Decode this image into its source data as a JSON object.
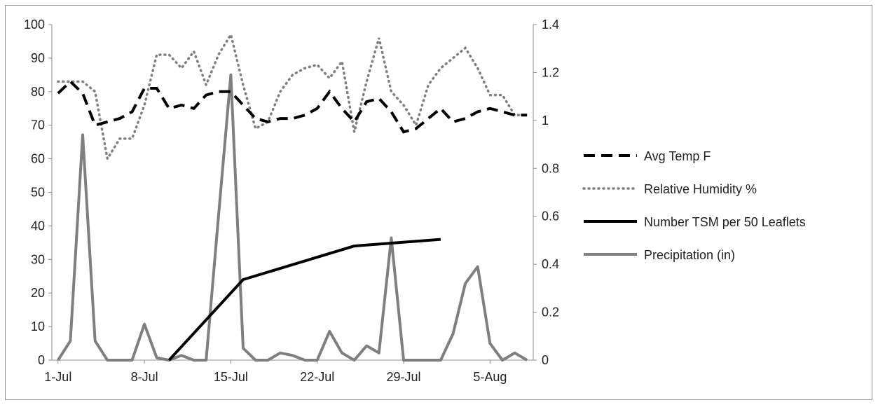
{
  "chart_data": {
    "type": "line",
    "x_axis": {
      "ticks": [
        "1-Jul",
        "8-Jul",
        "15-Jul",
        "22-Jul",
        "29-Jul",
        "5-Aug"
      ],
      "range_days": [
        1,
        39
      ]
    },
    "y_left": {
      "range": [
        0,
        100
      ],
      "ticks": [
        "0",
        "10",
        "20",
        "30",
        "40",
        "50",
        "60",
        "70",
        "80",
        "90",
        "100"
      ]
    },
    "y_right": {
      "range": [
        0,
        1.4
      ],
      "ticks": [
        "0",
        "0.2",
        "0.4",
        "0.6",
        "0.8",
        "1",
        "1.2",
        "1.4"
      ]
    },
    "grid": false,
    "legend_position": "right",
    "series": [
      {
        "name": "Avg Temp F",
        "axis": "left",
        "style": "dashed",
        "color": "#000000",
        "x": [
          1,
          2,
          3,
          4,
          5,
          6,
          7,
          8,
          9,
          10,
          11,
          12,
          13,
          14,
          15,
          16,
          17,
          18,
          19,
          20,
          21,
          22,
          23,
          24,
          25,
          26,
          27,
          28,
          29,
          30,
          31,
          32,
          33,
          34,
          35,
          36,
          37,
          38,
          39
        ],
        "y": [
          79.5,
          83,
          79.5,
          70,
          71,
          72,
          74,
          81,
          81,
          75,
          76,
          75,
          79,
          80,
          80,
          76,
          72,
          71,
          72,
          72,
          73,
          75,
          80,
          75,
          71,
          77,
          78,
          74,
          68,
          69,
          72,
          75,
          71,
          72,
          74,
          75,
          74,
          73,
          73
        ]
      },
      {
        "name": "Relative Humidity %",
        "axis": "left",
        "style": "dotted",
        "color": "#7f7f7f",
        "x": [
          1,
          2,
          3,
          4,
          5,
          6,
          7,
          8,
          9,
          10,
          11,
          12,
          13,
          14,
          15,
          16,
          17,
          18,
          19,
          20,
          21,
          22,
          23,
          24,
          25,
          26,
          27,
          28,
          29,
          30,
          31,
          32,
          33,
          34,
          35,
          36,
          37,
          38,
          39
        ],
        "y": [
          83,
          83,
          83,
          80,
          60,
          66,
          66,
          76,
          91,
          91,
          87,
          92,
          82,
          91,
          97,
          82,
          69,
          71,
          80,
          85,
          87,
          88,
          84,
          89,
          68,
          83,
          96,
          80,
          76,
          70,
          82,
          87,
          90,
          93,
          87,
          79,
          79,
          73,
          73
        ]
      },
      {
        "name": "Number TSM per 50 Leaflets",
        "axis": "left",
        "style": "solid",
        "color": "#000000",
        "x": [
          10,
          16,
          25,
          32
        ],
        "y": [
          0,
          24,
          34,
          36
        ]
      },
      {
        "name": "Precipitation (in)",
        "axis": "right",
        "style": "solid",
        "color": "#7f7f7f",
        "x": [
          1,
          2,
          3,
          4,
          5,
          6,
          7,
          8,
          9,
          10,
          11,
          12,
          13,
          14,
          15,
          16,
          17,
          18,
          19,
          20,
          21,
          22,
          23,
          24,
          25,
          26,
          27,
          28,
          29,
          30,
          31,
          32,
          33,
          34,
          35,
          36,
          37,
          38,
          39
        ],
        "y": [
          0,
          0.08,
          0.94,
          0.08,
          0,
          0,
          0,
          0.15,
          0.01,
          0,
          0.02,
          0,
          0,
          0.6,
          1.19,
          0.05,
          0,
          0,
          0.03,
          0.02,
          0,
          0,
          0.12,
          0.03,
          0,
          0.06,
          0.03,
          0.51,
          0,
          0,
          0,
          0,
          0.11,
          0.32,
          0.39,
          0.07,
          0,
          0.03,
          0
        ]
      }
    ]
  }
}
